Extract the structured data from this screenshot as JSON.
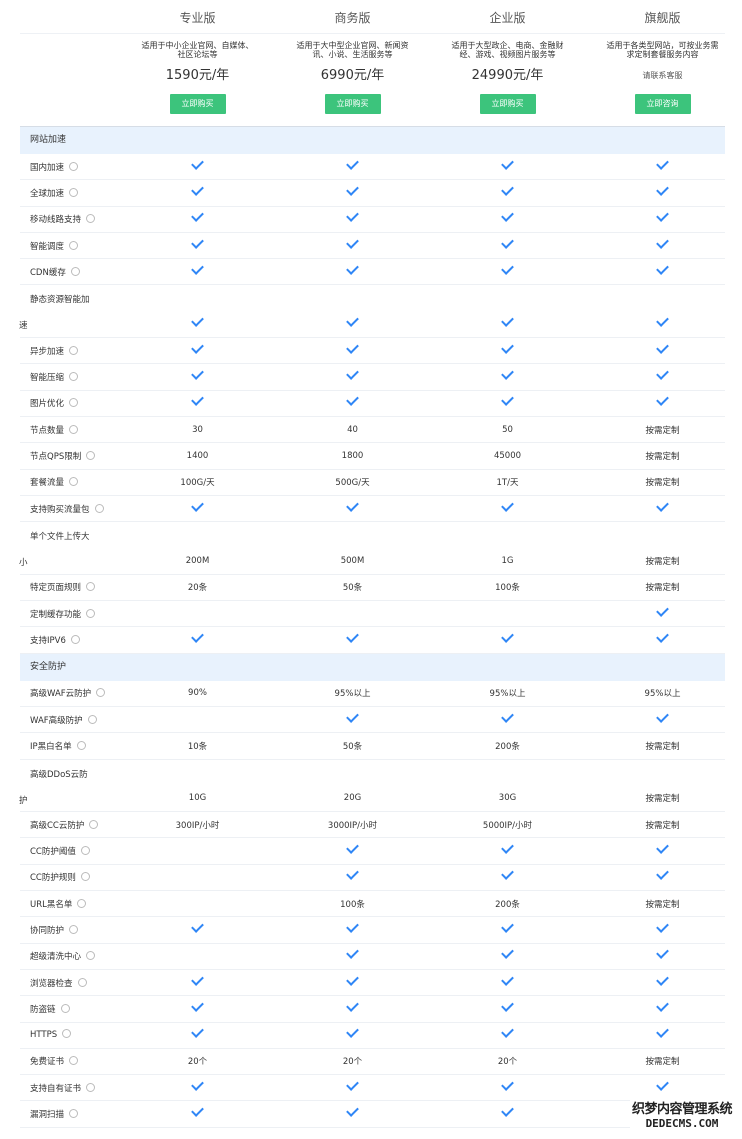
{
  "plans": [
    {
      "name": "专业版",
      "desc": "适用于中小企业官网、自媒体、社区论坛等",
      "price": "1590元/年",
      "button": "立即购买"
    },
    {
      "name": "商务版",
      "desc": "适用于大中型企业官网、新闻资讯、小说、生活服务等",
      "price": "6990元/年",
      "button": "立即购买"
    },
    {
      "name": "企业版",
      "desc": "适用于大型政企、电商、金融财经、游戏、视频图片服务等",
      "price": "24990元/年",
      "button": "立即购买"
    },
    {
      "name": "旗舰版",
      "desc": "适用于各类型网站，可按业务需求定制套餐服务内容",
      "contact": "请联系客服",
      "button": "立即咨询"
    }
  ],
  "colors": {
    "accent_button": "#3cc47c",
    "check": "#2f86f6",
    "section_bg": "#e8f2fd"
  },
  "sections": [
    {
      "title": "网站加速",
      "rows": [
        {
          "label": "国内加速",
          "values": [
            "✓",
            "✓",
            "✓",
            "✓"
          ]
        },
        {
          "label": "全球加速",
          "values": [
            "✓",
            "✓",
            "✓",
            "✓"
          ]
        },
        {
          "label": "移动线路支持",
          "values": [
            "✓",
            "✓",
            "✓",
            "✓"
          ]
        },
        {
          "label": "智能调度",
          "values": [
            "✓",
            "✓",
            "✓",
            "✓"
          ]
        },
        {
          "label": "CDN缓存",
          "values": [
            "✓",
            "✓",
            "✓",
            "✓"
          ]
        },
        {
          "label_line1": "静态资源智能加",
          "label_line2": "速",
          "values": [
            "✓",
            "✓",
            "✓",
            "✓"
          ]
        },
        {
          "label": "异步加速",
          "values": [
            "✓",
            "✓",
            "✓",
            "✓"
          ]
        },
        {
          "label": "智能压缩",
          "values": [
            "✓",
            "✓",
            "✓",
            "✓"
          ]
        },
        {
          "label": "图片优化",
          "values": [
            "✓",
            "✓",
            "✓",
            "✓"
          ]
        },
        {
          "label": "节点数量",
          "values": [
            "30",
            "40",
            "50",
            "按需定制"
          ]
        },
        {
          "label": "节点QPS限制",
          "values": [
            "1400",
            "1800",
            "45000",
            "按需定制"
          ]
        },
        {
          "label": "套餐流量",
          "values": [
            "100G/天",
            "500G/天",
            "1T/天",
            "按需定制"
          ]
        },
        {
          "label": "支持购买流量包",
          "values": [
            "✓",
            "✓",
            "✓",
            "✓"
          ]
        },
        {
          "label_line1": "单个文件上传大",
          "label_line2": "小",
          "values": [
            "200M",
            "500M",
            "1G",
            "按需定制"
          ]
        },
        {
          "label": "特定页面规则",
          "values": [
            "20条",
            "50条",
            "100条",
            "按需定制"
          ]
        },
        {
          "label": "定制缓存功能",
          "values": [
            "",
            "",
            "",
            "✓"
          ]
        },
        {
          "label": "支持IPV6",
          "values": [
            "✓",
            "✓",
            "✓",
            "✓"
          ]
        }
      ]
    },
    {
      "title": "安全防护",
      "rows": [
        {
          "label": "高级WAF云防护",
          "values": [
            "90%",
            "95%以上",
            "95%以上",
            "95%以上"
          ]
        },
        {
          "label": "WAF高级防护",
          "values": [
            "",
            "✓",
            "✓",
            "✓"
          ]
        },
        {
          "label": "IP黑白名单",
          "values": [
            "10条",
            "50条",
            "200条",
            "按需定制"
          ]
        },
        {
          "label_line1": "高级DDoS云防",
          "label_line2": "护",
          "values": [
            "10G",
            "20G",
            "30G",
            "按需定制"
          ]
        },
        {
          "label": "高级CC云防护",
          "values": [
            "300IP/小时",
            "3000IP/小时",
            "5000IP/小时",
            "按需定制"
          ]
        },
        {
          "label": "CC防护阈值",
          "values": [
            "",
            "✓",
            "✓",
            "✓"
          ]
        },
        {
          "label": "CC防护规则",
          "values": [
            "",
            "✓",
            "✓",
            "✓"
          ]
        },
        {
          "label": "URL黑名单",
          "values": [
            "",
            "100条",
            "200条",
            "按需定制"
          ]
        },
        {
          "label": "协同防护",
          "values": [
            "✓",
            "✓",
            "✓",
            "✓"
          ]
        },
        {
          "label": "超级清洗中心",
          "values": [
            "",
            "✓",
            "✓",
            "✓"
          ]
        },
        {
          "label": "浏览器检查",
          "values": [
            "✓",
            "✓",
            "✓",
            "✓"
          ]
        },
        {
          "label": "防盗链",
          "values": [
            "✓",
            "✓",
            "✓",
            "✓"
          ]
        },
        {
          "label": "HTTPS",
          "values": [
            "✓",
            "✓",
            "✓",
            "✓"
          ]
        },
        {
          "label": "免费证书",
          "values": [
            "20个",
            "20个",
            "20个",
            "按需定制"
          ]
        },
        {
          "label": "支持自有证书",
          "values": [
            "✓",
            "✓",
            "✓",
            "✓"
          ]
        },
        {
          "label": "漏洞扫描",
          "values": [
            "✓",
            "✓",
            "✓",
            "✓"
          ]
        }
      ]
    }
  ],
  "watermark": {
    "line1": "织梦内容管理系统",
    "line2": "DEDECMS.COM"
  }
}
